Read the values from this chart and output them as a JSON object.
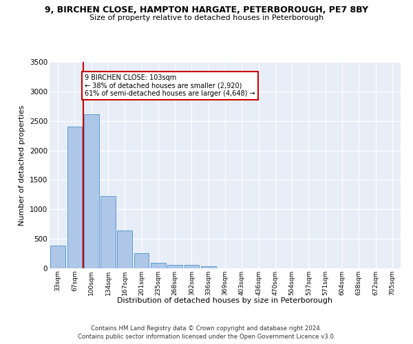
{
  "title1": "9, BIRCHEN CLOSE, HAMPTON HARGATE, PETERBOROUGH, PE7 8BY",
  "title2": "Size of property relative to detached houses in Peterborough",
  "xlabel": "Distribution of detached houses by size in Peterborough",
  "ylabel": "Number of detached properties",
  "categories": [
    "33sqm",
    "67sqm",
    "100sqm",
    "134sqm",
    "167sqm",
    "201sqm",
    "235sqm",
    "268sqm",
    "302sqm",
    "336sqm",
    "369sqm",
    "403sqm",
    "436sqm",
    "470sqm",
    "504sqm",
    "537sqm",
    "571sqm",
    "604sqm",
    "638sqm",
    "672sqm",
    "705sqm"
  ],
  "values": [
    390,
    2400,
    2610,
    1230,
    640,
    255,
    95,
    60,
    55,
    40,
    0,
    0,
    0,
    0,
    0,
    0,
    0,
    0,
    0,
    0,
    0
  ],
  "bar_color": "#aec6e8",
  "bar_edge_color": "#5a9ed1",
  "vline_color": "#cc0000",
  "annotation_text": "9 BIRCHEN CLOSE: 103sqm\n← 38% of detached houses are smaller (2,920)\n61% of semi-detached houses are larger (4,648) →",
  "annotation_box_color": "#ffffff",
  "annotation_box_edge": "#cc0000",
  "ylim": [
    0,
    3500
  ],
  "yticks": [
    0,
    500,
    1000,
    1500,
    2000,
    2500,
    3000,
    3500
  ],
  "background_color": "#e8eef8",
  "grid_color": "#ffffff",
  "footer1": "Contains HM Land Registry data © Crown copyright and database right 2024.",
  "footer2": "Contains public sector information licensed under the Open Government Licence v3.0."
}
